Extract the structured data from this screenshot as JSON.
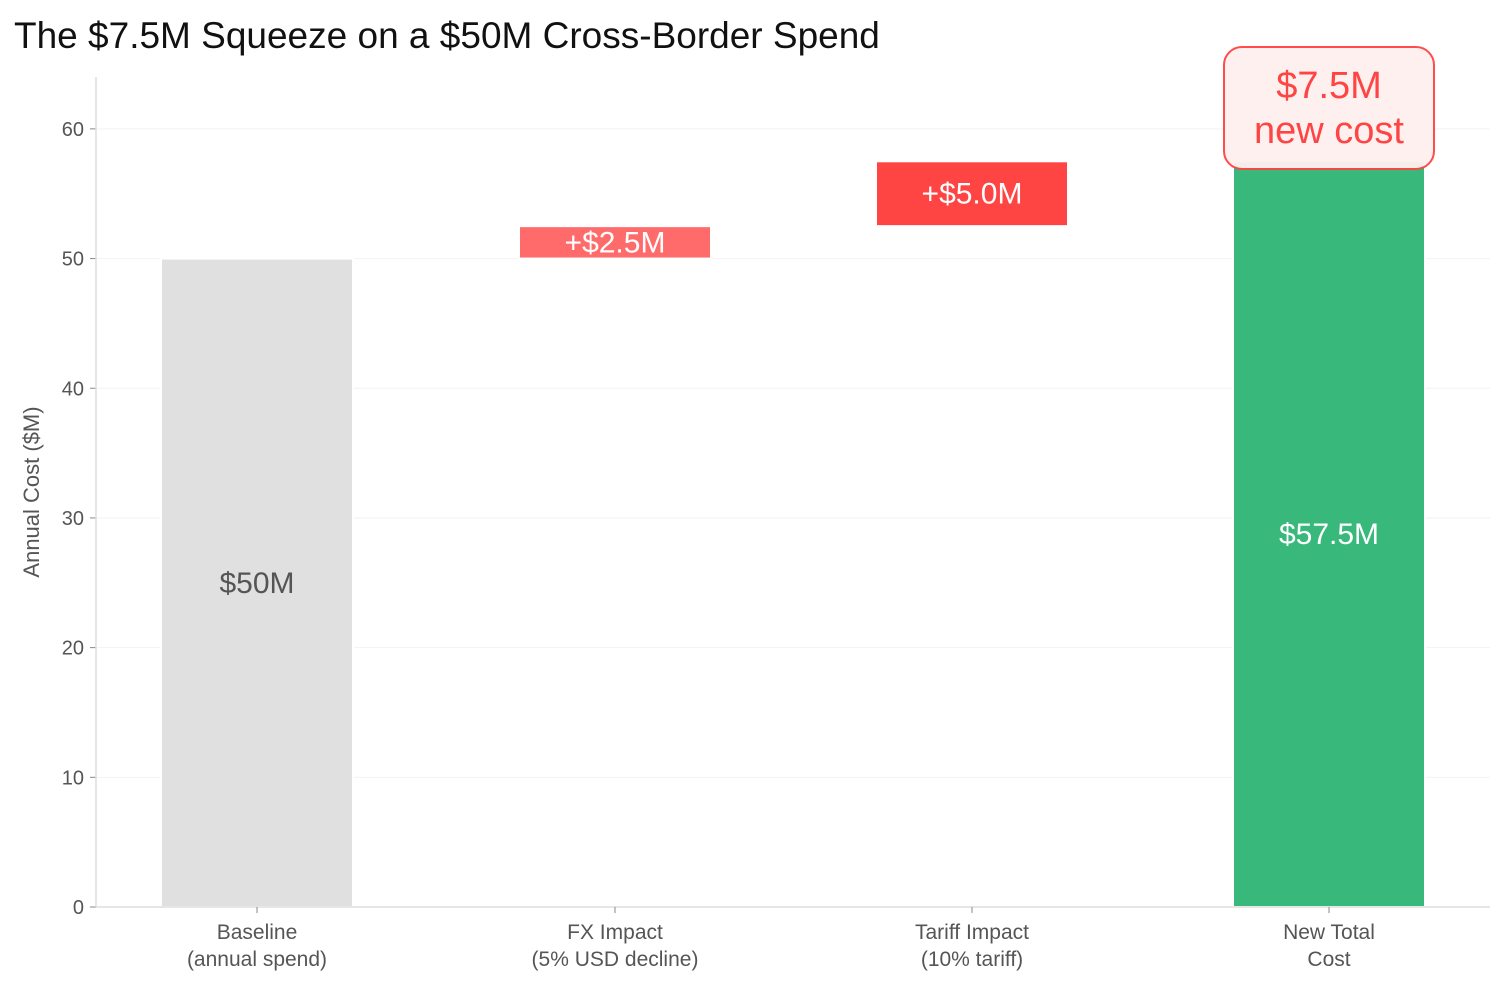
{
  "chart_data": {
    "type": "bar",
    "subtype": "waterfall",
    "title": "The $7.5M Squeeze on a $50M Cross-Border Spend",
    "xlabel": "",
    "ylabel": "Annual Cost ($M)",
    "ylim": [
      0,
      64
    ],
    "yticks": [
      0,
      10,
      20,
      30,
      40,
      50,
      60
    ],
    "grid": "horizontal",
    "categories": [
      [
        "Baseline",
        "(annual spend)"
      ],
      [
        "FX Impact",
        "(5% USD decline)"
      ],
      [
        "Tariff Impact",
        "(10% tariff)"
      ],
      [
        "New Total",
        "Cost"
      ]
    ],
    "bars": [
      {
        "bottom": 0,
        "top": 50,
        "label": "$50M",
        "color": "#e0e0e0",
        "label_color": "#555555"
      },
      {
        "bottom": 50,
        "top": 52.5,
        "label": "+$2.5M",
        "color": "#ff6b6b",
        "label_color": "#ffffff"
      },
      {
        "bottom": 52.5,
        "top": 57.5,
        "label": "+$5.0M",
        "color": "#ff4444",
        "label_color": "#ffffff"
      },
      {
        "bottom": 0,
        "top": 57.5,
        "label": "$57.5M",
        "color": "#38b97b",
        "label_color": "#ffffff"
      }
    ],
    "annotation": {
      "lines": [
        "$7.5M",
        "new cost"
      ],
      "color": "#ff4444",
      "background": "#fff0f0",
      "anchor_category": 3
    }
  }
}
